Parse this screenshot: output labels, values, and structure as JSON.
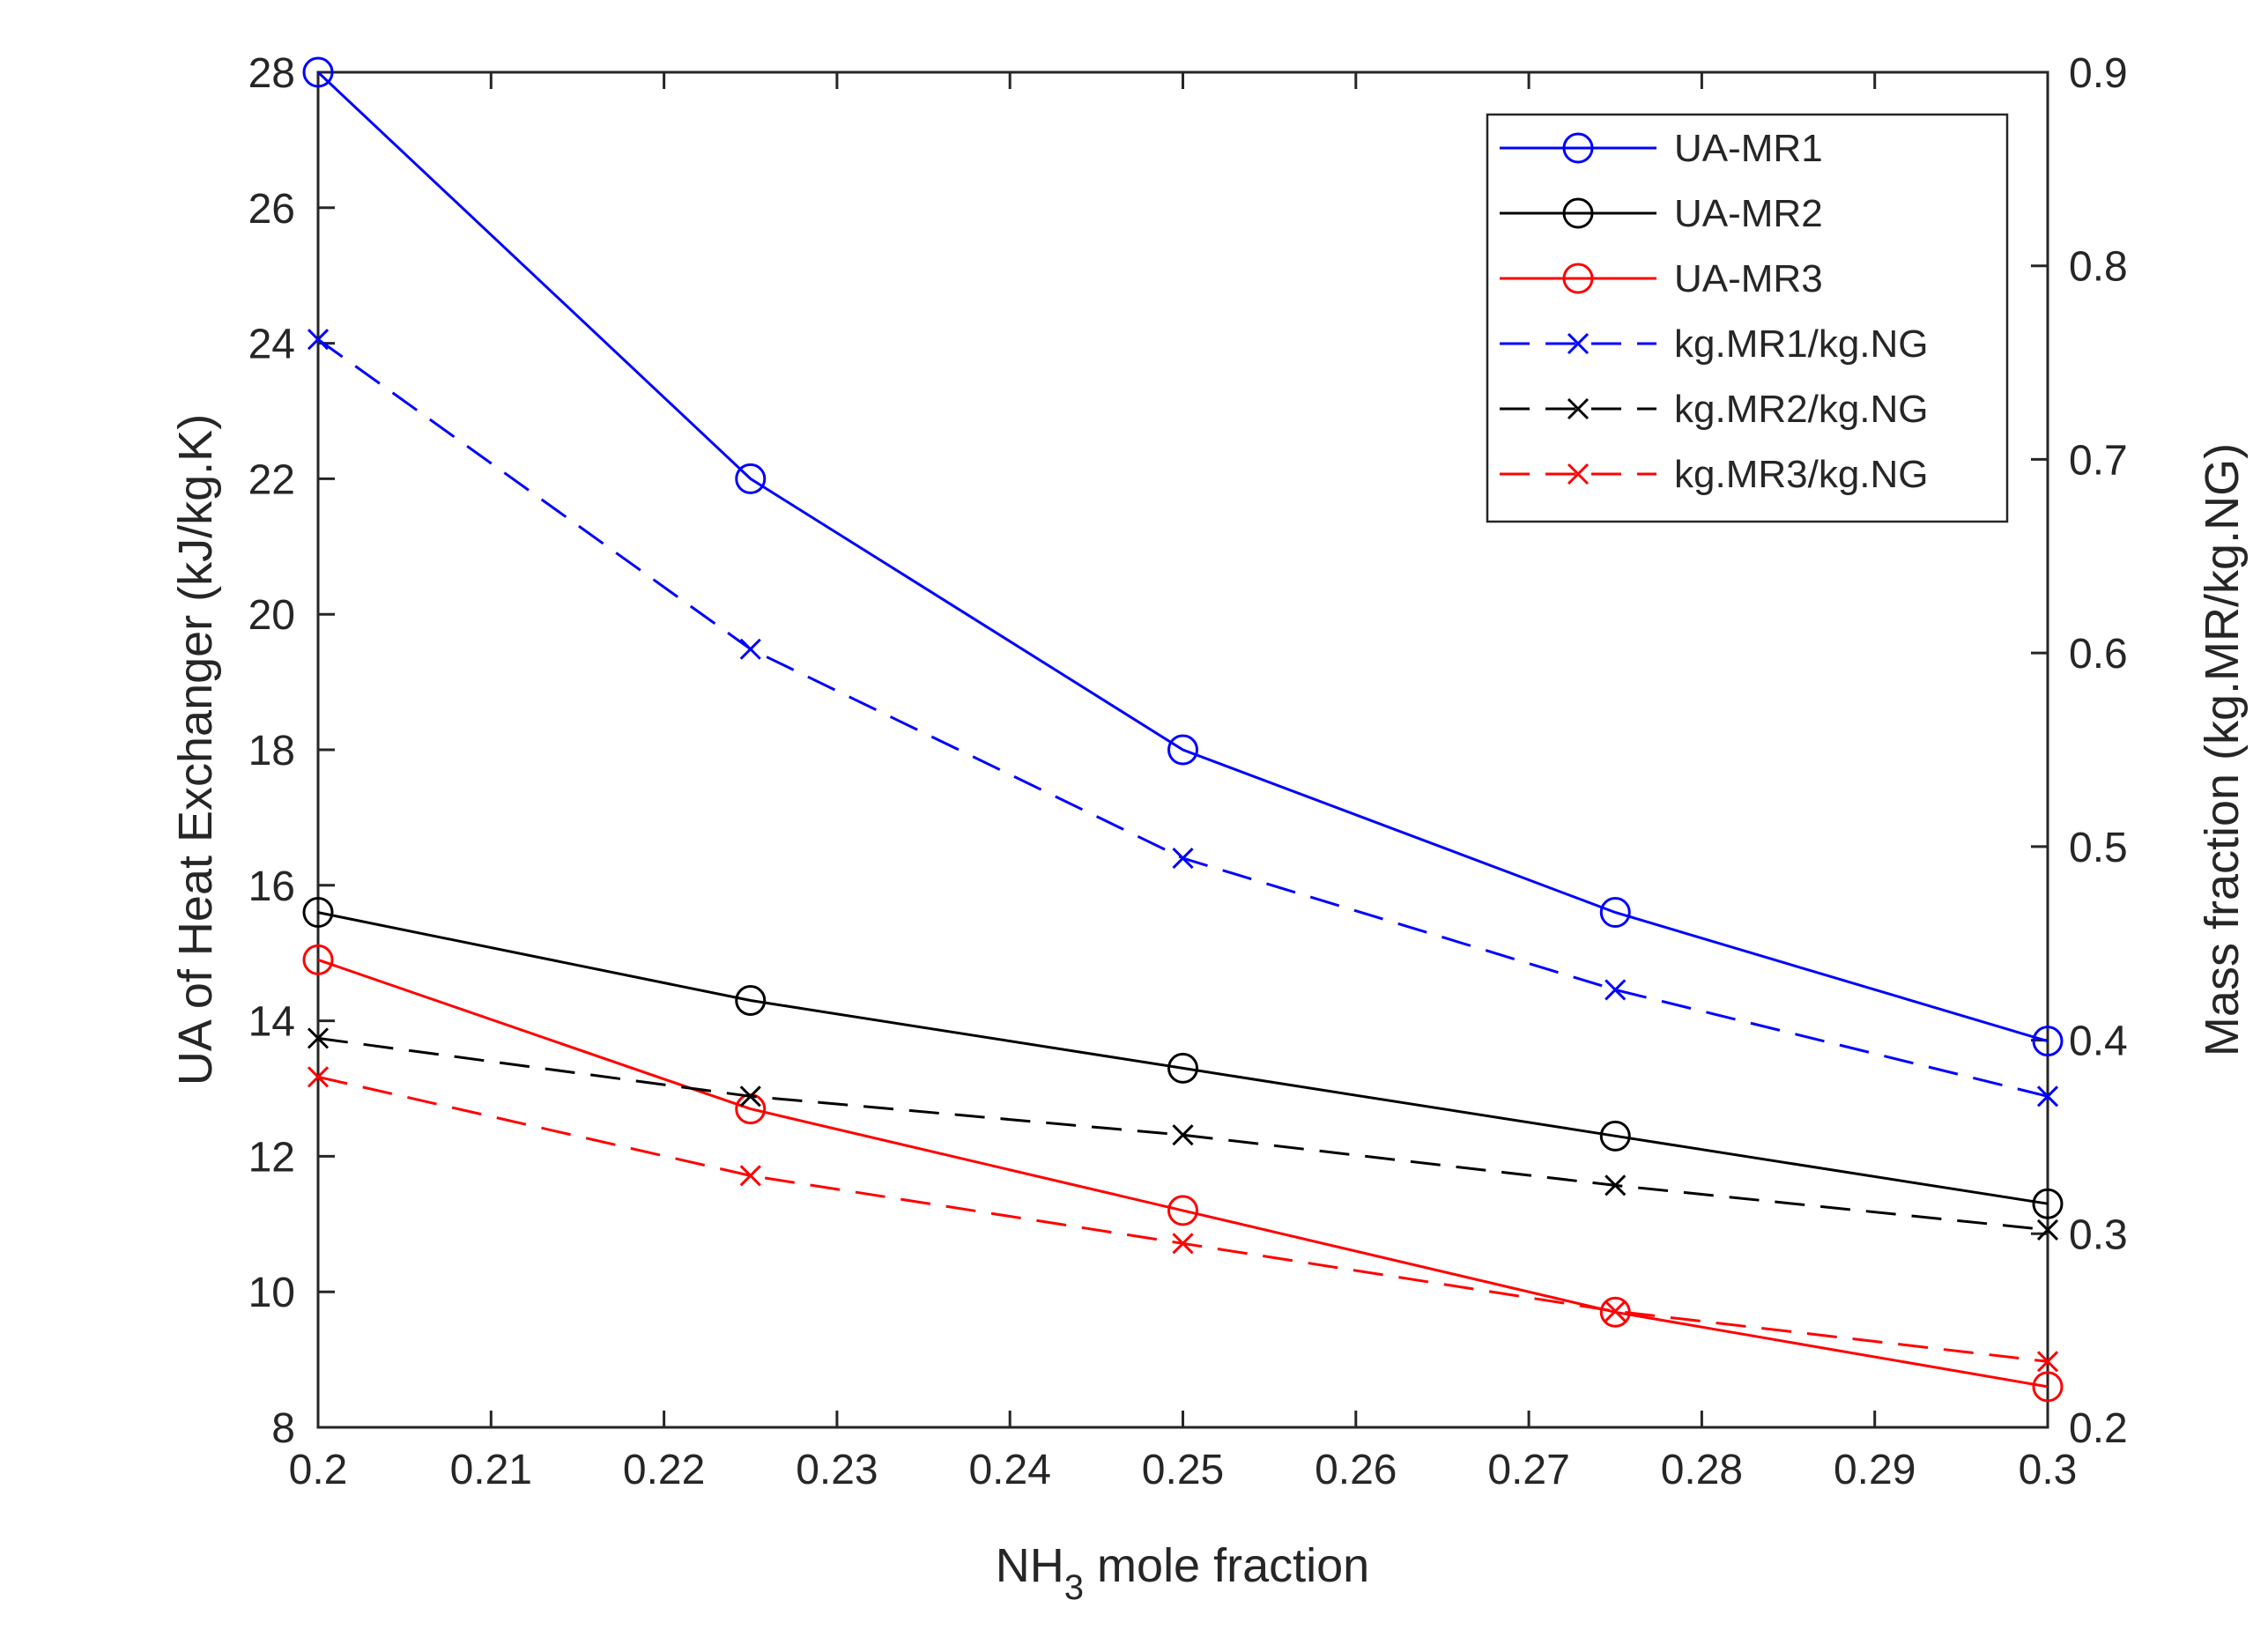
{
  "chart_data": {
    "type": "line",
    "title": "",
    "xlabel": {
      "main": "NH",
      "subscript": "3",
      "rest": " mole fraction"
    },
    "ylabel_left": "UA of Heat Exchanger (kJ/kg.K)",
    "ylabel_right": "Mass fraction (kg.MR/kg.NG)",
    "xlim": [
      0.2,
      0.3
    ],
    "ylim_left": [
      8,
      28
    ],
    "ylim_right": [
      0.2,
      0.9
    ],
    "x_ticks": [
      "0.2",
      "0.21",
      "0.22",
      "0.23",
      "0.24",
      "0.25",
      "0.26",
      "0.27",
      "0.28",
      "0.29",
      "0.3"
    ],
    "y_left_ticks": [
      "8",
      "10",
      "12",
      "14",
      "16",
      "18",
      "20",
      "22",
      "24",
      "26",
      "28"
    ],
    "y_right_ticks": [
      "0.2",
      "0.3",
      "0.4",
      "0.5",
      "0.6",
      "0.7",
      "0.8",
      "0.9"
    ],
    "grid": false,
    "legend_position": "top-right",
    "series": [
      {
        "name": "UA-MR1",
        "axis": "left",
        "color": "#0000ff",
        "linestyle": "solid",
        "marker": "circle",
        "x": [
          0.2,
          0.225,
          0.25,
          0.275,
          0.3
        ],
        "values": [
          28.0,
          22.0,
          18.0,
          15.6,
          13.7
        ]
      },
      {
        "name": "UA-MR2",
        "axis": "left",
        "color": "#000000",
        "linestyle": "solid",
        "marker": "circle",
        "x": [
          0.2,
          0.225,
          0.25,
          0.275,
          0.3
        ],
        "values": [
          15.6,
          14.3,
          13.3,
          12.3,
          11.3
        ]
      },
      {
        "name": "UA-MR3",
        "axis": "left",
        "color": "#ff0000",
        "linestyle": "solid",
        "marker": "circle",
        "x": [
          0.2,
          0.225,
          0.25,
          0.275,
          0.3
        ],
        "values": [
          14.9,
          12.7,
          11.2,
          9.7,
          8.6
        ]
      },
      {
        "name": "kg.MR1/kg.NG",
        "axis": "right",
        "color": "#0000ff",
        "linestyle": "dashed",
        "marker": "x",
        "x": [
          0.2,
          0.225,
          0.25,
          0.275,
          0.3
        ],
        "values": [
          0.762,
          0.602,
          0.494,
          0.426,
          0.371
        ]
      },
      {
        "name": "kg.MR2/kg.NG",
        "axis": "right",
        "color": "#000000",
        "linestyle": "dashed",
        "marker": "x",
        "x": [
          0.2,
          0.225,
          0.25,
          0.275,
          0.3
        ],
        "values": [
          0.401,
          0.371,
          0.351,
          0.325,
          0.302
        ]
      },
      {
        "name": "kg.MR3/kg.NG",
        "axis": "right",
        "color": "#ff0000",
        "linestyle": "dashed",
        "marker": "x",
        "x": [
          0.2,
          0.225,
          0.25,
          0.275,
          0.3
        ],
        "values": [
          0.381,
          0.33,
          0.295,
          0.26,
          0.234
        ]
      }
    ]
  }
}
